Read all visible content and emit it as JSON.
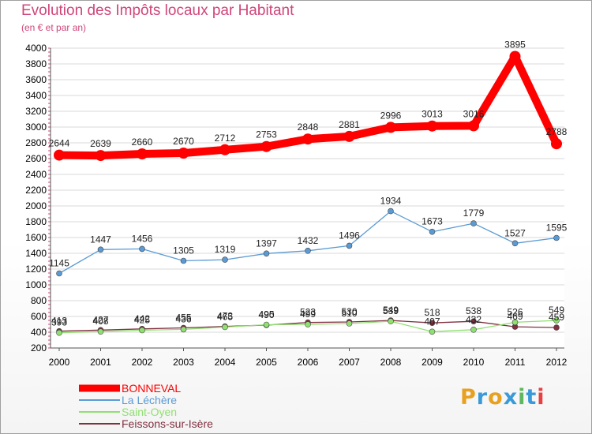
{
  "title": "Evolution des Impôts locaux par Habitant",
  "subtitle": "(en € et par an)",
  "logo": {
    "text": "Proxiti",
    "letters": [
      "P",
      "r",
      "o",
      "x",
      "i",
      "t",
      "i"
    ],
    "colors": [
      "#e8a020",
      "#3a9ad9",
      "#e8a020",
      "#3a9ad9",
      "#5fb85f",
      "#3a9ad9",
      "#e84040"
    ]
  },
  "chart_data": {
    "type": "line",
    "title": "Evolution des Impôts locaux par Habitant",
    "ylabel": "(en € et par an)",
    "xlabel": "",
    "categories": [
      "2000",
      "2001",
      "2002",
      "2003",
      "2004",
      "2005",
      "2006",
      "2007",
      "2008",
      "2009",
      "2010",
      "2011",
      "2012"
    ],
    "ylim": [
      200,
      4000
    ],
    "yticks": [
      "200",
      "400",
      "600",
      "800",
      "1000",
      "1200",
      "1400",
      "1600",
      "1800",
      "2000",
      "2200",
      "2400",
      "2600",
      "2800",
      "3000",
      "3200",
      "3400",
      "3600",
      "3800",
      "4000"
    ],
    "legend_position": "bottom-left",
    "series": [
      {
        "name": "BONNEVAL",
        "color": "#ff0000",
        "values": [
          2644,
          2639,
          2660,
          2670,
          2712,
          2753,
          2848,
          2881,
          2996,
          3013,
          3016,
          3895,
          2788
        ],
        "labels": [
          "2644",
          "2639",
          "2660",
          "2670",
          "2712",
          "2753",
          "2848",
          "2881",
          "2996",
          "3013",
          "3016",
          "3895",
          "2788"
        ]
      },
      {
        "name": "La Léchère",
        "color": "#5b9bd5",
        "values": [
          1145,
          1447,
          1456,
          1305,
          1319,
          1397,
          1432,
          1496,
          1934,
          1673,
          1779,
          1527,
          1595
        ],
        "labels": [
          "1145",
          "1447",
          "1456",
          "1305",
          "1319",
          "1397",
          "1432",
          "1496",
          "1934",
          "1673",
          "1779",
          "1527",
          "1595"
        ]
      },
      {
        "name": "Saint-Oyen",
        "color": "#90e070",
        "values": [
          393,
          408,
          425,
          436,
          465,
          495,
          499,
          510,
          539,
          407,
          432,
          526,
          549
        ],
        "labels": [
          "393",
          "408",
          "425",
          "436",
          "465",
          "495",
          "499",
          "510",
          "539",
          "407",
          "432",
          "526",
          "549"
        ]
      },
      {
        "name": "Feissons-sur-Isère",
        "color": "#803040",
        "values": [
          413,
          427,
          442,
          455,
          473,
          490,
          523,
          530,
          549,
          518,
          538,
          469,
          459
        ],
        "labels": [
          "413",
          "427",
          "442",
          "455",
          "473",
          "490",
          "523",
          "530",
          "549",
          "518",
          "538",
          "469",
          "459"
        ]
      }
    ]
  }
}
